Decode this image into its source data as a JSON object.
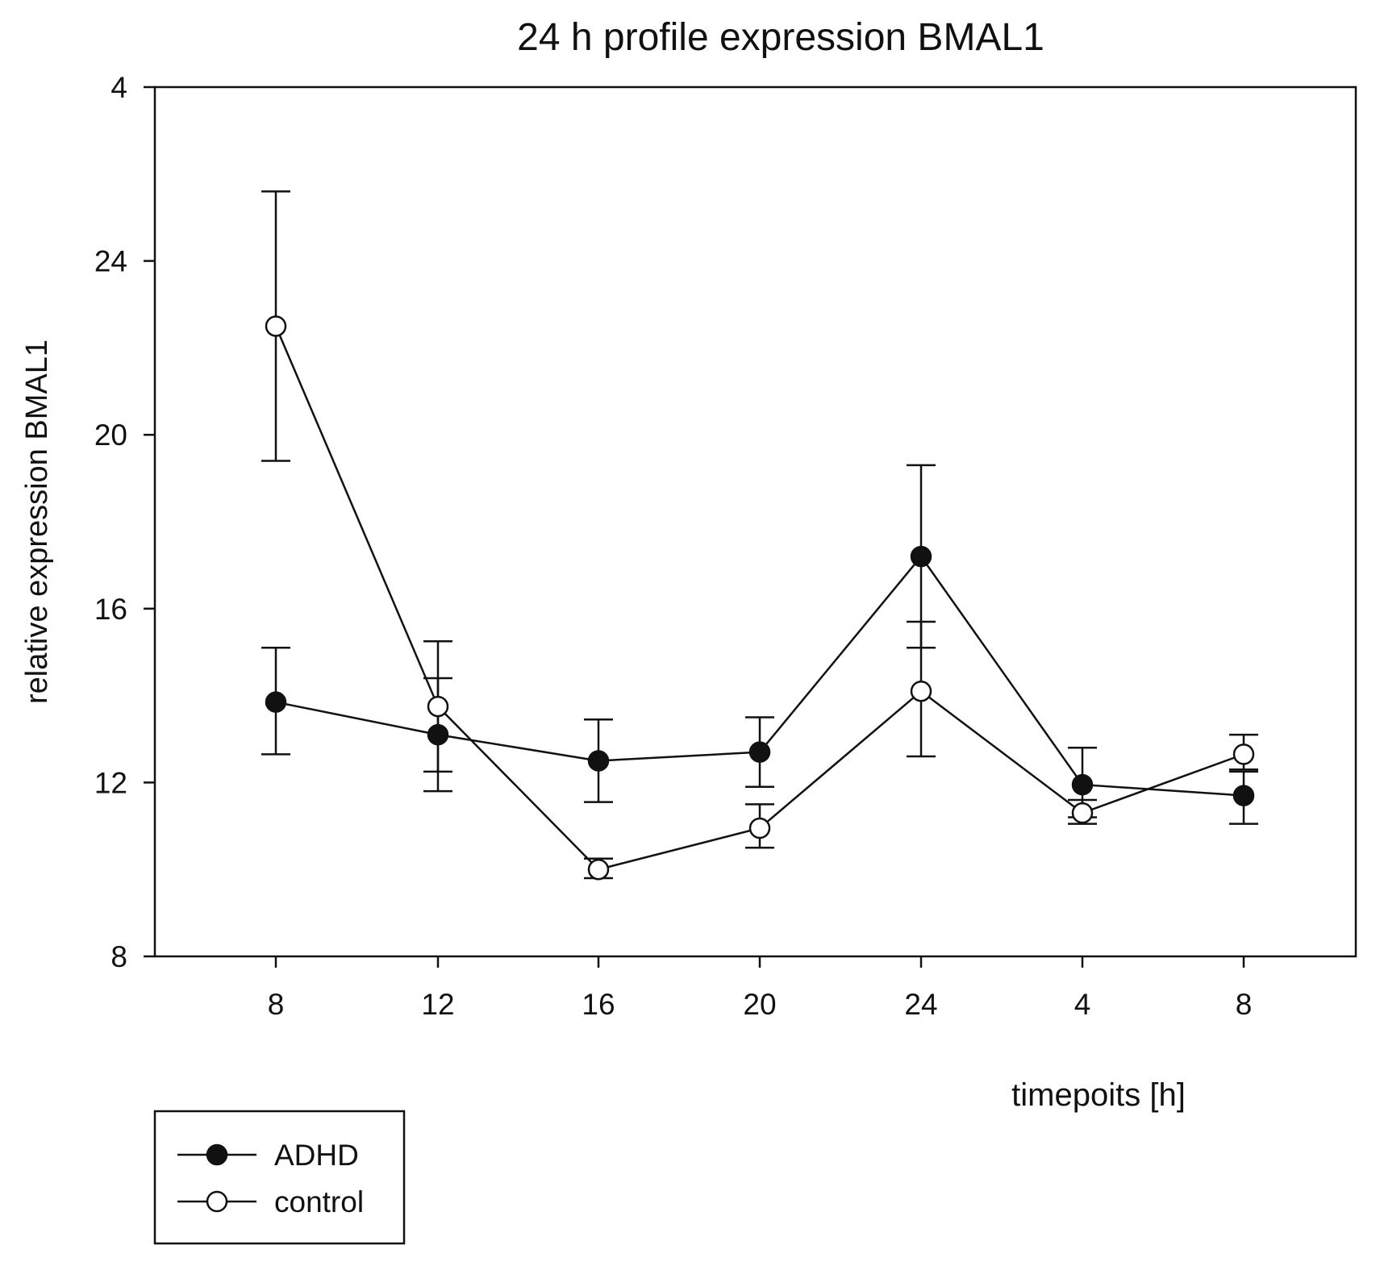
{
  "chart_data": {
    "type": "line",
    "title": "24 h profile expression BMAL1",
    "xlabel": "timepoits [h]",
    "ylabel": "relative expression BMAL1",
    "categories": [
      "8",
      "12",
      "16",
      "20",
      "24",
      "4",
      "8"
    ],
    "y_ticks": [
      "4",
      "24",
      "20",
      "16",
      "12",
      "8"
    ],
    "ylim": [
      8,
      28
    ],
    "grid": false,
    "legend_position": "bottom-left",
    "series": [
      {
        "name": "ADHD",
        "marker": "filled-circle",
        "values": [
          13.85,
          13.1,
          12.5,
          12.7,
          17.2,
          11.95,
          11.7
        ],
        "err_low": [
          12.65,
          11.8,
          11.55,
          11.9,
          15.1,
          11.2,
          11.05
        ],
        "err_high": [
          15.1,
          14.4,
          13.45,
          13.5,
          19.3,
          12.8,
          12.25
        ]
      },
      {
        "name": "control",
        "marker": "open-circle",
        "values": [
          22.5,
          13.75,
          10.0,
          10.95,
          14.1,
          11.3,
          12.65
        ],
        "err_low": [
          19.4,
          12.25,
          9.8,
          10.5,
          12.6,
          11.05,
          12.3
        ],
        "err_high": [
          25.6,
          15.25,
          10.25,
          11.5,
          15.7,
          11.6,
          13.1
        ]
      }
    ]
  }
}
